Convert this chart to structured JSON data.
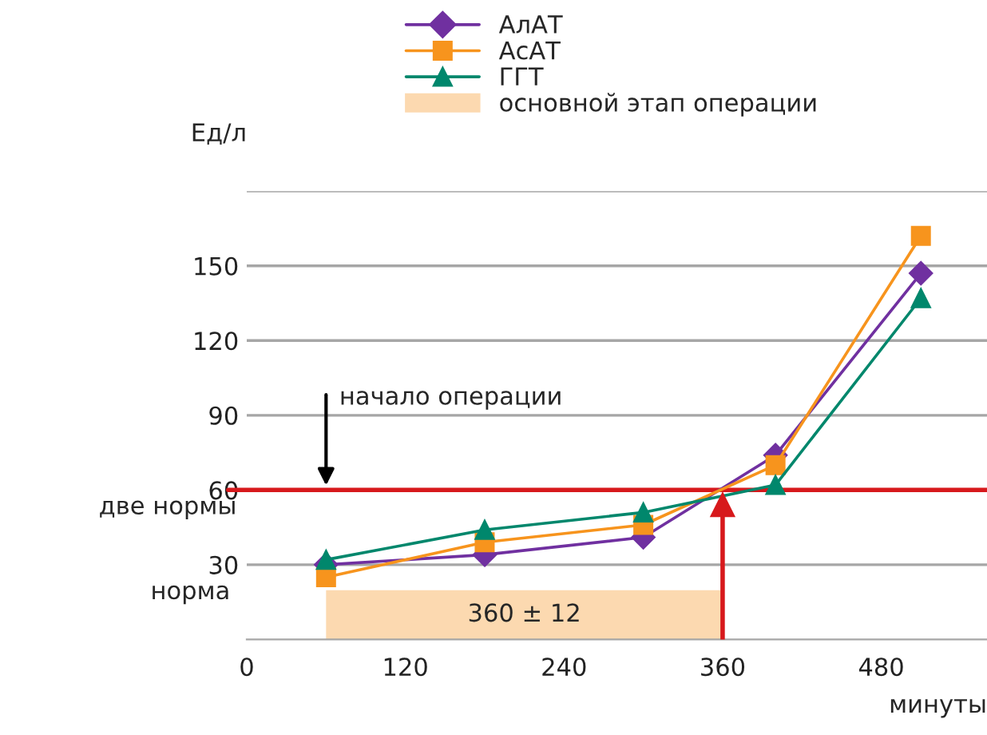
{
  "chart_data": {
    "type": "line",
    "xlabel": "минуты",
    "ylabel": "Ед/л",
    "x": [
      60,
      180,
      300,
      400,
      510
    ],
    "series": [
      {
        "name": "АлАТ",
        "color": "#7030a0",
        "marker": "diamond",
        "values": [
          30,
          34,
          41,
          74,
          147
        ]
      },
      {
        "name": "АсАТ",
        "color": "#f7941d",
        "marker": "square",
        "values": [
          25,
          39,
          46,
          70,
          162
        ]
      },
      {
        "name": "ГГТ",
        "color": "#00876c",
        "marker": "triangle",
        "values": [
          32,
          44,
          51,
          62,
          137
        ]
      }
    ],
    "xlim": [
      0,
      560
    ],
    "xticks": [
      0,
      120,
      240,
      360,
      480
    ],
    "ylim": [
      0,
      180
    ],
    "yticks": [
      30,
      60,
      90,
      120,
      150,
      {
        "value": 180,
        "label": null
      }
    ],
    "grid": "y",
    "legend": "top",
    "bands": [
      {
        "axis": "x",
        "from": 60,
        "to": 360,
        "label": "основной этап операции",
        "color": "#fcd9b0"
      }
    ],
    "ref_lines": [
      {
        "axis": "y",
        "value": 60,
        "label": "две нормы",
        "color": "#d7191c"
      },
      {
        "axis": "x",
        "value": 360,
        "label": null,
        "color": "#d7191c"
      }
    ],
    "annotations": [
      "норма",
      "360 ± 12",
      "начало операции"
    ]
  }
}
